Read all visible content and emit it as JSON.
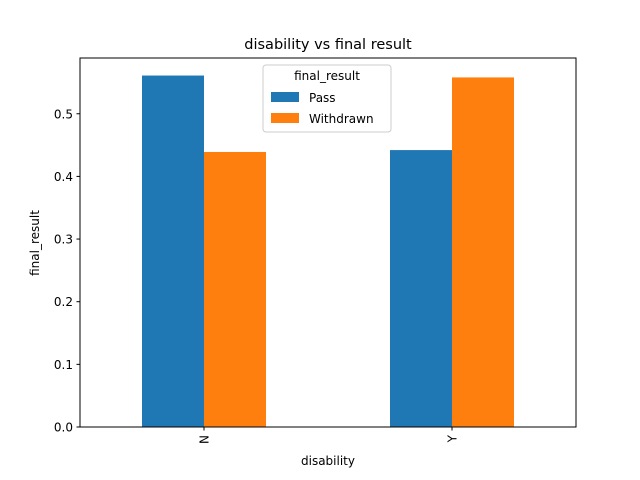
{
  "chart_data": {
    "type": "bar",
    "title": "disability vs final result",
    "xlabel": "disability",
    "ylabel": "final_result",
    "categories": [
      "N",
      "Y"
    ],
    "series": [
      {
        "name": "Pass",
        "values": [
          0.561,
          0.442
        ],
        "color": "#1f77b4"
      },
      {
        "name": "Withdrawn",
        "values": [
          0.439,
          0.558
        ],
        "color": "#ff7f0e"
      }
    ],
    "yticks": [
      0.0,
      0.1,
      0.2,
      0.3,
      0.4,
      0.5
    ],
    "ytick_labels": [
      "0.0",
      "0.1",
      "0.2",
      "0.3",
      "0.4",
      "0.5"
    ],
    "ylim": [
      0,
      0.589
    ],
    "grid": false,
    "legend": {
      "title": "final_result",
      "placement": "upper center"
    }
  }
}
